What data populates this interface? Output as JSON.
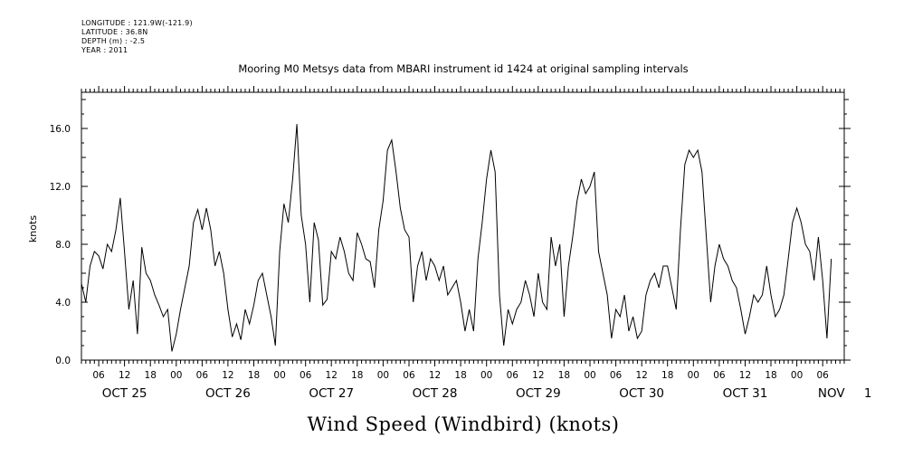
{
  "meta": {
    "longitude": "LONGITUDE : 121.9W(-121.9)",
    "latitude": "LATITUDE : 36.8N",
    "depth": "DEPTH (m) : -2.5",
    "year": "YEAR : 2011"
  },
  "chart_data": {
    "type": "line",
    "title": "Mooring M0 Metsys data from MBARI instrument id 1424 at original sampling intervals",
    "xlabel": "Wind Speed (Windbird) (knots)",
    "ylabel": "knots",
    "ylim": [
      0,
      18.5
    ],
    "xlim_hours": [
      -22,
      155
    ],
    "yticks": [
      0.0,
      4.0,
      8.0,
      12.0,
      16.0
    ],
    "ytick_labels": [
      "0.0",
      "4.0",
      "8.0",
      "12.0",
      "16.0"
    ],
    "hour_tick_labels": [
      {
        "h": -18,
        "label": "06"
      },
      {
        "h": -12,
        "label": "12"
      },
      {
        "h": -6,
        "label": "18"
      },
      {
        "h": 0,
        "label": "00"
      },
      {
        "h": 6,
        "label": "06"
      },
      {
        "h": 12,
        "label": "12"
      },
      {
        "h": 18,
        "label": "18"
      },
      {
        "h": 24,
        "label": "00"
      },
      {
        "h": 30,
        "label": "06"
      },
      {
        "h": 36,
        "label": "12"
      },
      {
        "h": 42,
        "label": "18"
      },
      {
        "h": 48,
        "label": "00"
      },
      {
        "h": 54,
        "label": "06"
      },
      {
        "h": 60,
        "label": "12"
      },
      {
        "h": 66,
        "label": "18"
      },
      {
        "h": 72,
        "label": "00"
      },
      {
        "h": 78,
        "label": "06"
      },
      {
        "h": 84,
        "label": "12"
      },
      {
        "h": 90,
        "label": "18"
      },
      {
        "h": 96,
        "label": "00"
      },
      {
        "h": 102,
        "label": "06"
      },
      {
        "h": 108,
        "label": "12"
      },
      {
        "h": 114,
        "label": "18"
      },
      {
        "h": 120,
        "label": "00"
      },
      {
        "h": 126,
        "label": "06"
      },
      {
        "h": 132,
        "label": "12"
      },
      {
        "h": 138,
        "label": "18"
      },
      {
        "h": 144,
        "label": "00"
      },
      {
        "h": 150,
        "label": "06"
      }
    ],
    "date_labels": [
      {
        "h": -12,
        "label": "OCT 25"
      },
      {
        "h": 12,
        "label": "OCT 26"
      },
      {
        "h": 36,
        "label": "OCT 27"
      },
      {
        "h": 60,
        "label": "OCT 28"
      },
      {
        "h": 84,
        "label": "OCT 29"
      },
      {
        "h": 108,
        "label": "OCT 30"
      },
      {
        "h": 132,
        "label": "OCT 31"
      },
      {
        "h": 152,
        "label": "NOV"
      },
      {
        "h": 160.5,
        "label": "1"
      }
    ],
    "series": [
      {
        "x_hours_from_oct26_00": [
          -22,
          -21,
          -20,
          -19,
          -18,
          -17,
          -16,
          -15,
          -14,
          -13,
          -12,
          -11,
          -10,
          -9,
          -8,
          -7,
          -6,
          -5,
          -4,
          -3,
          -2,
          -1,
          0,
          1,
          2,
          3,
          4,
          5,
          6,
          7,
          8,
          9,
          10,
          11,
          12,
          13,
          14,
          15,
          16,
          17,
          18,
          19,
          20,
          21,
          22,
          23,
          24,
          25,
          26,
          27,
          28,
          29,
          30,
          31,
          32,
          33,
          34,
          35,
          36,
          37,
          38,
          39,
          40,
          41,
          42,
          43,
          44,
          45,
          46,
          47,
          48,
          49,
          50,
          51,
          52,
          53,
          54,
          55,
          56,
          57,
          58,
          59,
          60,
          61,
          62,
          63,
          64,
          65,
          66,
          67,
          68,
          69,
          70,
          71,
          72,
          73,
          74,
          75,
          76,
          77,
          78,
          79,
          80,
          81,
          82,
          83,
          84,
          85,
          86,
          87,
          88,
          89,
          90,
          91,
          92,
          93,
          94,
          95,
          96,
          97,
          98,
          99,
          100,
          101,
          102,
          103,
          104,
          105,
          106,
          107,
          108,
          109,
          110,
          111,
          112,
          113,
          114,
          115,
          116,
          117,
          118,
          119,
          120,
          121,
          122,
          123,
          124,
          125,
          126,
          127,
          128,
          129,
          130,
          131,
          132,
          133,
          134,
          135,
          136,
          137,
          138,
          139,
          140,
          141,
          142,
          143,
          144,
          145,
          146,
          147,
          148,
          149,
          150,
          151,
          152,
          153
        ],
        "values": [
          5.3,
          4.0,
          6.5,
          7.5,
          7.2,
          6.3,
          8.0,
          7.5,
          9.0,
          11.2,
          7.5,
          3.5,
          5.5,
          1.8,
          7.8,
          6.0,
          5.5,
          4.5,
          3.8,
          3.0,
          3.5,
          0.6,
          1.8,
          3.5,
          5.0,
          6.5,
          9.5,
          10.4,
          9.0,
          10.5,
          9.0,
          6.5,
          7.5,
          6.0,
          3.5,
          1.6,
          2.5,
          1.4,
          3.5,
          2.5,
          3.8,
          5.5,
          6.0,
          4.5,
          3.0,
          1.0,
          7.5,
          10.8,
          9.5,
          12.5,
          16.3,
          10.0,
          8.0,
          4.0,
          9.5,
          8.3,
          3.8,
          4.2,
          7.5,
          7.0,
          8.5,
          7.5,
          6.0,
          5.5,
          8.8,
          8.0,
          7.0,
          6.8,
          5.0,
          9.0,
          11.0,
          14.5,
          15.2,
          13.0,
          10.5,
          9.0,
          8.5,
          4.0,
          6.5,
          7.5,
          5.5,
          7.0,
          6.5,
          5.5,
          6.5,
          4.5,
          5.0,
          5.5,
          4.0,
          2.0,
          3.5,
          2.0,
          7.0,
          9.5,
          12.5,
          14.5,
          13.0,
          4.5,
          1.0,
          3.5,
          2.5,
          3.5,
          4.0,
          5.5,
          4.5,
          3.0,
          6.0,
          4.0,
          3.5,
          8.5,
          6.5,
          8.0,
          3.0,
          6.5,
          8.5,
          11.0,
          12.5,
          11.5,
          12.0,
          13.0,
          7.5,
          6.0,
          4.5,
          1.5,
          3.5,
          3.0,
          4.5,
          2.0,
          3.0,
          1.5,
          2.0,
          4.5,
          5.5,
          6.0,
          5.0,
          6.5,
          6.5,
          5.0,
          3.5,
          9.0,
          13.5,
          14.5,
          14.0,
          14.5,
          13.0,
          8.5,
          4.0,
          6.5,
          8.0,
          7.0,
          6.5,
          5.5,
          5.0,
          3.5,
          1.8,
          3.0,
          4.5,
          4.0,
          4.5,
          6.5,
          4.5,
          3.0,
          3.5,
          4.5,
          7.0,
          9.5,
          10.5,
          9.5,
          8.0,
          7.5,
          5.5,
          8.5,
          5.5,
          1.5,
          7.0
        ]
      }
    ]
  }
}
